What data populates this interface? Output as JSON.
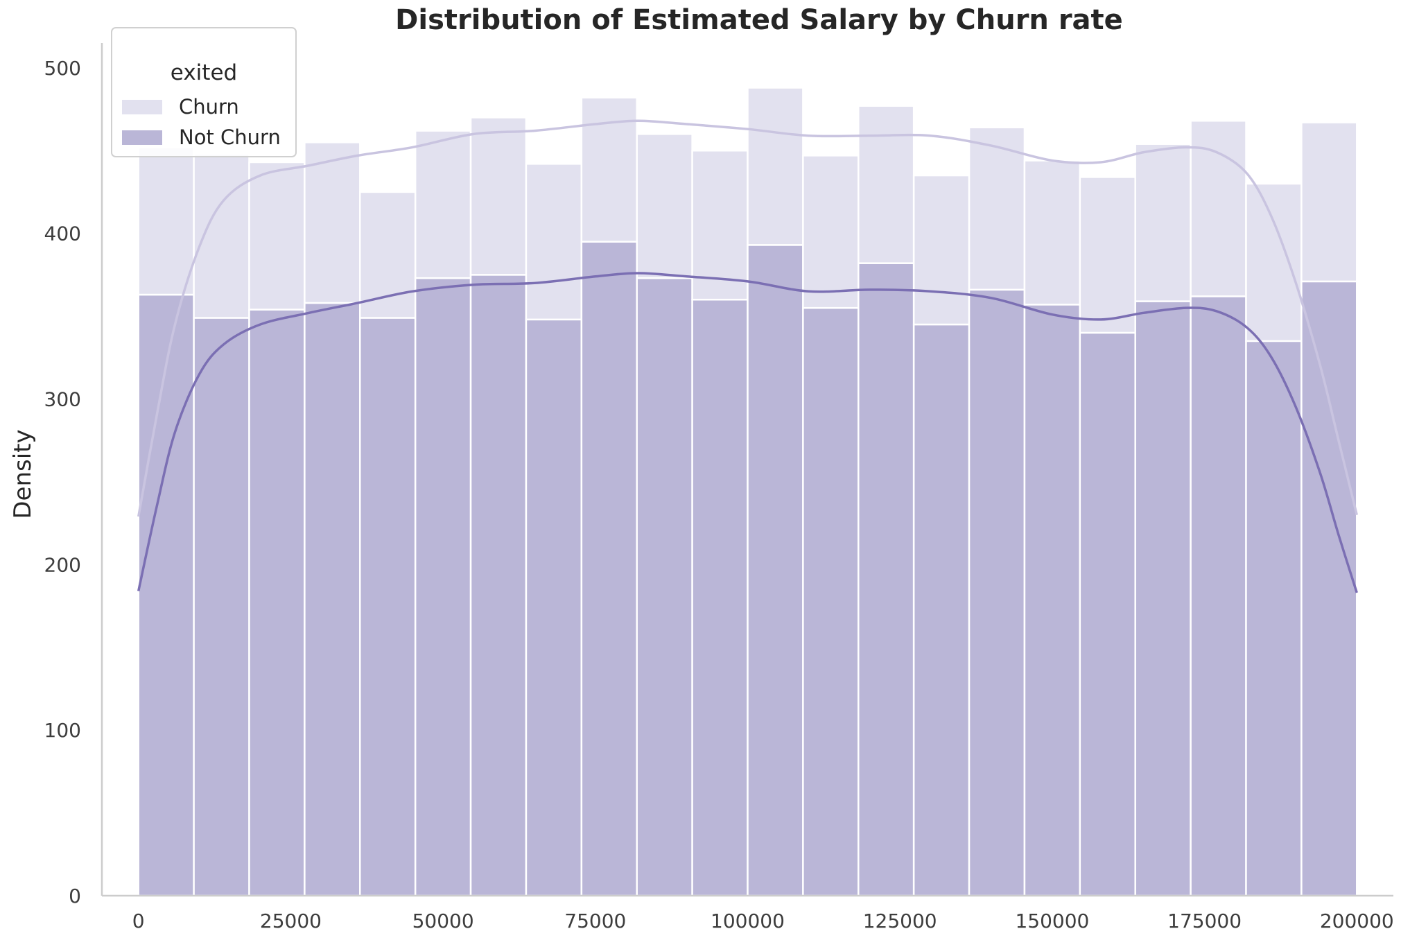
{
  "chart_data": {
    "type": "bar",
    "title": "Distribution of Estimated Salary by Churn rate",
    "xlabel": "",
    "ylabel": "Density",
    "xlim": [
      -6000,
      206000
    ],
    "ylim": [
      0,
      515
    ],
    "x_ticks": [
      0,
      25000,
      50000,
      75000,
      100000,
      125000,
      150000,
      175000,
      200000
    ],
    "x_tick_labels": [
      "0",
      "25000",
      "50000",
      "75000",
      "100000",
      "125000",
      "150000",
      "175000",
      "200000"
    ],
    "y_ticks": [
      0,
      100,
      200,
      300,
      400,
      500
    ],
    "y_tick_labels": [
      "0",
      "100",
      "200",
      "300",
      "400",
      "500"
    ],
    "stacked": true,
    "grid": false,
    "bin_edges": [
      0,
      9090.9,
      18181.8,
      27272.7,
      36363.6,
      45454.5,
      54545.5,
      63636.4,
      72727.3,
      81818.2,
      90909.1,
      100000,
      109090.9,
      118181.8,
      127272.7,
      136363.6,
      145454.5,
      154545.5,
      163636.4,
      172727.3,
      181818.2,
      190909.1,
      200000
    ],
    "legend": {
      "title": "exited",
      "position": "top-left",
      "entries": [
        {
          "label": "Churn",
          "color": "#e2e1ef"
        },
        {
          "label": "Not Churn",
          "color": "#bab6d7"
        }
      ]
    },
    "series": [
      {
        "name": "Not Churn",
        "color": "#bab6d7",
        "kde_color": "#7b6fb3",
        "values": [
          363,
          349,
          354,
          358,
          349,
          373,
          375,
          348,
          395,
          373,
          360,
          393,
          355,
          382,
          345,
          366,
          357,
          340,
          359,
          362,
          335,
          371
        ],
        "kde": [
          [
            0,
            184
          ],
          [
            3000,
            235
          ],
          [
            6000,
            280
          ],
          [
            10000,
            315
          ],
          [
            14000,
            333
          ],
          [
            20000,
            345
          ],
          [
            28000,
            352
          ],
          [
            36000,
            358
          ],
          [
            45000,
            365
          ],
          [
            55000,
            369
          ],
          [
            65000,
            370
          ],
          [
            75000,
            374
          ],
          [
            82000,
            376
          ],
          [
            90000,
            374
          ],
          [
            100000,
            371
          ],
          [
            110000,
            365
          ],
          [
            120000,
            366
          ],
          [
            130000,
            365
          ],
          [
            140000,
            361
          ],
          [
            150000,
            351
          ],
          [
            158000,
            348
          ],
          [
            165000,
            352
          ],
          [
            172000,
            355
          ],
          [
            177000,
            353
          ],
          [
            182000,
            343
          ],
          [
            186000,
            325
          ],
          [
            190000,
            295
          ],
          [
            194000,
            255
          ],
          [
            197000,
            218
          ],
          [
            200000,
            183
          ]
        ]
      },
      {
        "name": "Churn",
        "color": "#e2e1ef",
        "kde_color": "#c9c4e0",
        "values": [
          89,
          99,
          89,
          97,
          76,
          89,
          95,
          94,
          87,
          87,
          90,
          95,
          92,
          95,
          90,
          98,
          87,
          94,
          95,
          106,
          95,
          96
        ],
        "kde": [
          [
            0,
            229
          ],
          [
            3000,
            290
          ],
          [
            6000,
            345
          ],
          [
            10000,
            392
          ],
          [
            14000,
            420
          ],
          [
            20000,
            435
          ],
          [
            28000,
            441
          ],
          [
            36000,
            447
          ],
          [
            45000,
            452
          ],
          [
            55000,
            460
          ],
          [
            65000,
            462
          ],
          [
            75000,
            466
          ],
          [
            82000,
            468
          ],
          [
            90000,
            466
          ],
          [
            100000,
            463
          ],
          [
            110000,
            459
          ],
          [
            120000,
            459
          ],
          [
            130000,
            459
          ],
          [
            140000,
            453
          ],
          [
            150000,
            444
          ],
          [
            158000,
            443
          ],
          [
            165000,
            449
          ],
          [
            172000,
            452
          ],
          [
            177000,
            449
          ],
          [
            182000,
            436
          ],
          [
            186000,
            410
          ],
          [
            190000,
            370
          ],
          [
            194000,
            320
          ],
          [
            197000,
            275
          ],
          [
            200000,
            230
          ]
        ]
      }
    ]
  }
}
